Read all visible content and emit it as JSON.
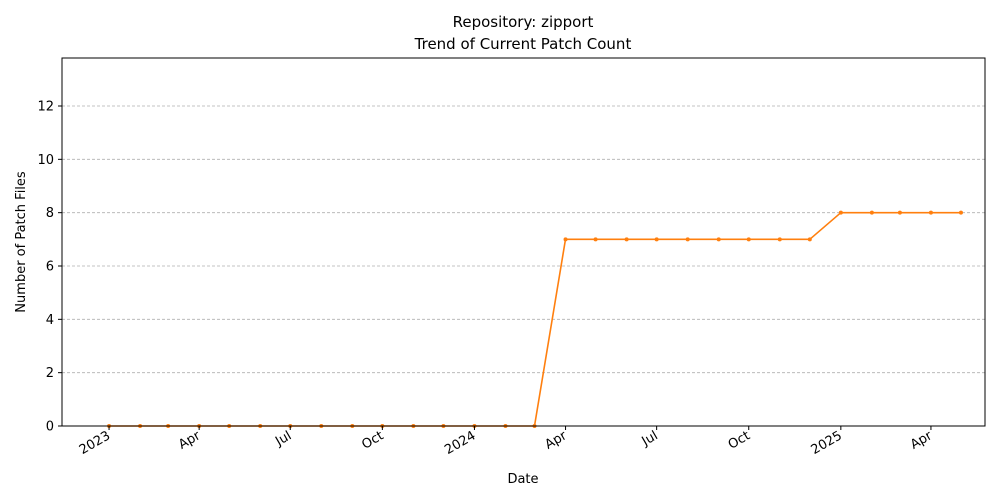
{
  "chart_data": {
    "type": "line",
    "title": "Repository: zipport",
    "subtitle": "Trend of Current Patch Count",
    "xlabel": "Date",
    "ylabel": "Number of Patch Files",
    "xlim": [
      "2022-11-15",
      "2025-05-25"
    ],
    "ylim": [
      0,
      13.8
    ],
    "grid": "y",
    "line_color": "#ff7f0e",
    "y_ticks": [
      0,
      2,
      4,
      6,
      8,
      10,
      12
    ],
    "x_ticks": [
      {
        "date": "2023-01-01",
        "label": "2023"
      },
      {
        "date": "2023-04-01",
        "label": "Apr"
      },
      {
        "date": "2023-07-01",
        "label": "Jul"
      },
      {
        "date": "2023-10-01",
        "label": "Oct"
      },
      {
        "date": "2024-01-01",
        "label": "2024"
      },
      {
        "date": "2024-04-01",
        "label": "Apr"
      },
      {
        "date": "2024-07-01",
        "label": "Jul"
      },
      {
        "date": "2024-10-01",
        "label": "Oct"
      },
      {
        "date": "2025-01-01",
        "label": "2025"
      },
      {
        "date": "2025-04-01",
        "label": "Apr"
      }
    ],
    "series": [
      {
        "x": [
          "2023-01-01",
          "2023-02-01",
          "2023-03-01",
          "2023-04-01",
          "2023-05-01",
          "2023-06-01",
          "2023-07-01",
          "2023-08-01",
          "2023-09-01",
          "2023-10-01",
          "2023-11-01",
          "2023-12-01",
          "2024-01-01",
          "2024-02-01",
          "2024-03-01",
          "2024-04-01",
          "2024-05-01",
          "2024-06-01",
          "2024-07-01",
          "2024-08-01",
          "2024-09-01",
          "2024-10-01",
          "2024-11-01",
          "2024-12-01",
          "2025-01-01",
          "2025-02-01",
          "2025-03-01",
          "2025-04-01",
          "2025-05-01"
        ],
        "y": [
          0,
          0,
          0,
          0,
          0,
          0,
          0,
          0,
          0,
          0,
          0,
          0,
          0,
          0,
          0,
          7,
          7,
          7,
          7,
          7,
          7,
          7,
          7,
          7,
          8,
          8,
          8,
          8,
          8
        ]
      }
    ]
  }
}
